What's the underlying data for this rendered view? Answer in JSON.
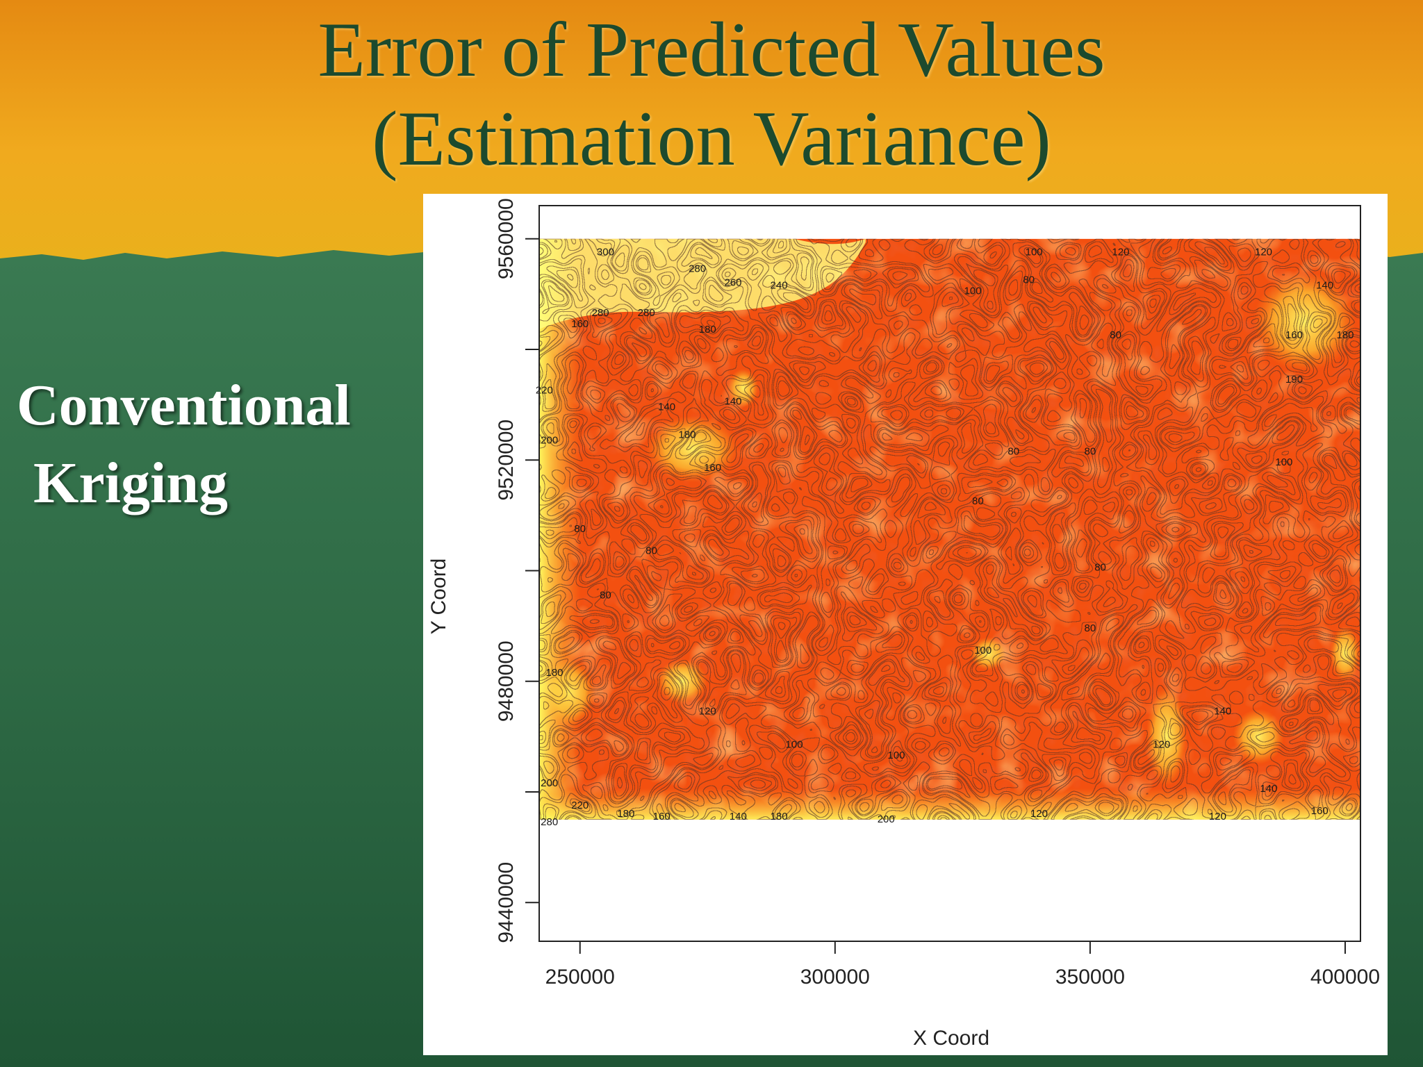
{
  "slide": {
    "title_line1": "Error of Predicted Values",
    "title_line2": "(Estimation Variance)",
    "side_line1": "Conventional",
    "side_line2": "Kriging",
    "colors": {
      "top_band": "#e8a01a",
      "bottom_band": "#2f6b45",
      "title_text": "#1c4a2e",
      "side_text": "#ffffff"
    }
  },
  "chart_data": {
    "type": "heatmap",
    "subtype": "filled-contour",
    "title": "",
    "xlabel": "X Coord",
    "ylabel": "Y Coord",
    "xlim": [
      242000,
      403000
    ],
    "ylim": [
      9433000,
      9566000
    ],
    "data_extent": {
      "x": [
        242000,
        403000
      ],
      "y": [
        9455000,
        9560000
      ]
    },
    "x_ticks": [
      250000,
      300000,
      350000,
      400000
    ],
    "x_tick_labels": [
      "250000",
      "300000",
      "350000",
      "400000"
    ],
    "y_ticks": [
      9440000,
      9480000,
      9520000,
      9560000
    ],
    "y_tick_labels": [
      "9440000",
      "9480000",
      "9520000",
      "9560000"
    ],
    "y_minor_ticks": [
      9440000,
      9460000,
      9480000,
      9500000,
      9520000,
      9540000,
      9560000
    ],
    "color_scale": [
      "#e8200a",
      "#f35010",
      "#f88a18",
      "#fbb328",
      "#fde040",
      "#ffff80"
    ],
    "contour_labels": [
      {
        "text": "300",
        "x": 255000,
        "y": 9557000
      },
      {
        "text": "280",
        "x": 273000,
        "y": 9554000
      },
      {
        "text": "260",
        "x": 280000,
        "y": 9551500
      },
      {
        "text": "240",
        "x": 289000,
        "y": 9551000
      },
      {
        "text": "280",
        "x": 254000,
        "y": 9546000
      },
      {
        "text": "280",
        "x": 263000,
        "y": 9546000
      },
      {
        "text": "160",
        "x": 250000,
        "y": 9544000
      },
      {
        "text": "180",
        "x": 275000,
        "y": 9543000
      },
      {
        "text": "140",
        "x": 267000,
        "y": 9529000
      },
      {
        "text": "180",
        "x": 271000,
        "y": 9524000
      },
      {
        "text": "160",
        "x": 276000,
        "y": 9518000
      },
      {
        "text": "140",
        "x": 280000,
        "y": 9530000
      },
      {
        "text": "220",
        "x": 243000,
        "y": 9532000
      },
      {
        "text": "200",
        "x": 244000,
        "y": 9523000
      },
      {
        "text": "100",
        "x": 327000,
        "y": 9550000
      },
      {
        "text": "80",
        "x": 338000,
        "y": 9552000
      },
      {
        "text": "120",
        "x": 356000,
        "y": 9557000
      },
      {
        "text": "100",
        "x": 339000,
        "y": 9557000
      },
      {
        "text": "80",
        "x": 355000,
        "y": 9542000
      },
      {
        "text": "80",
        "x": 335000,
        "y": 9521000
      },
      {
        "text": "80",
        "x": 350000,
        "y": 9521000
      },
      {
        "text": "80",
        "x": 328000,
        "y": 9512000
      },
      {
        "text": "80",
        "x": 352000,
        "y": 9500000
      },
      {
        "text": "80",
        "x": 350000,
        "y": 9489000
      },
      {
        "text": "100",
        "x": 329000,
        "y": 9485000
      },
      {
        "text": "120",
        "x": 384000,
        "y": 9557000
      },
      {
        "text": "140",
        "x": 396000,
        "y": 9551000
      },
      {
        "text": "160",
        "x": 390000,
        "y": 9542000
      },
      {
        "text": "180",
        "x": 400000,
        "y": 9542000
      },
      {
        "text": "190",
        "x": 390000,
        "y": 9534000
      },
      {
        "text": "100",
        "x": 388000,
        "y": 9519000
      },
      {
        "text": "80",
        "x": 250000,
        "y": 9507000
      },
      {
        "text": "80",
        "x": 264000,
        "y": 9503000
      },
      {
        "text": "80",
        "x": 255000,
        "y": 9495000
      },
      {
        "text": "180",
        "x": 245000,
        "y": 9481000
      },
      {
        "text": "120",
        "x": 275000,
        "y": 9474000
      },
      {
        "text": "100",
        "x": 292000,
        "y": 9468000
      },
      {
        "text": "100",
        "x": 312000,
        "y": 9466000
      },
      {
        "text": "120",
        "x": 364000,
        "y": 9468000
      },
      {
        "text": "140",
        "x": 376000,
        "y": 9474000
      },
      {
        "text": "140",
        "x": 385000,
        "y": 9460000
      },
      {
        "text": "200",
        "x": 244000,
        "y": 9461000
      },
      {
        "text": "220",
        "x": 250000,
        "y": 9457000
      },
      {
        "text": "180",
        "x": 259000,
        "y": 9455500
      },
      {
        "text": "160",
        "x": 266000,
        "y": 9455000
      },
      {
        "text": "140",
        "x": 281000,
        "y": 9455000
      },
      {
        "text": "180",
        "x": 289000,
        "y": 9455000
      },
      {
        "text": "200",
        "x": 310000,
        "y": 9454500
      },
      {
        "text": "120",
        "x": 340000,
        "y": 9455500
      },
      {
        "text": "120",
        "x": 375000,
        "y": 9455000
      },
      {
        "text": "160",
        "x": 395000,
        "y": 9456000
      },
      {
        "text": "280",
        "x": 244000,
        "y": 9454000
      }
    ],
    "grid": false,
    "legend": "none"
  }
}
